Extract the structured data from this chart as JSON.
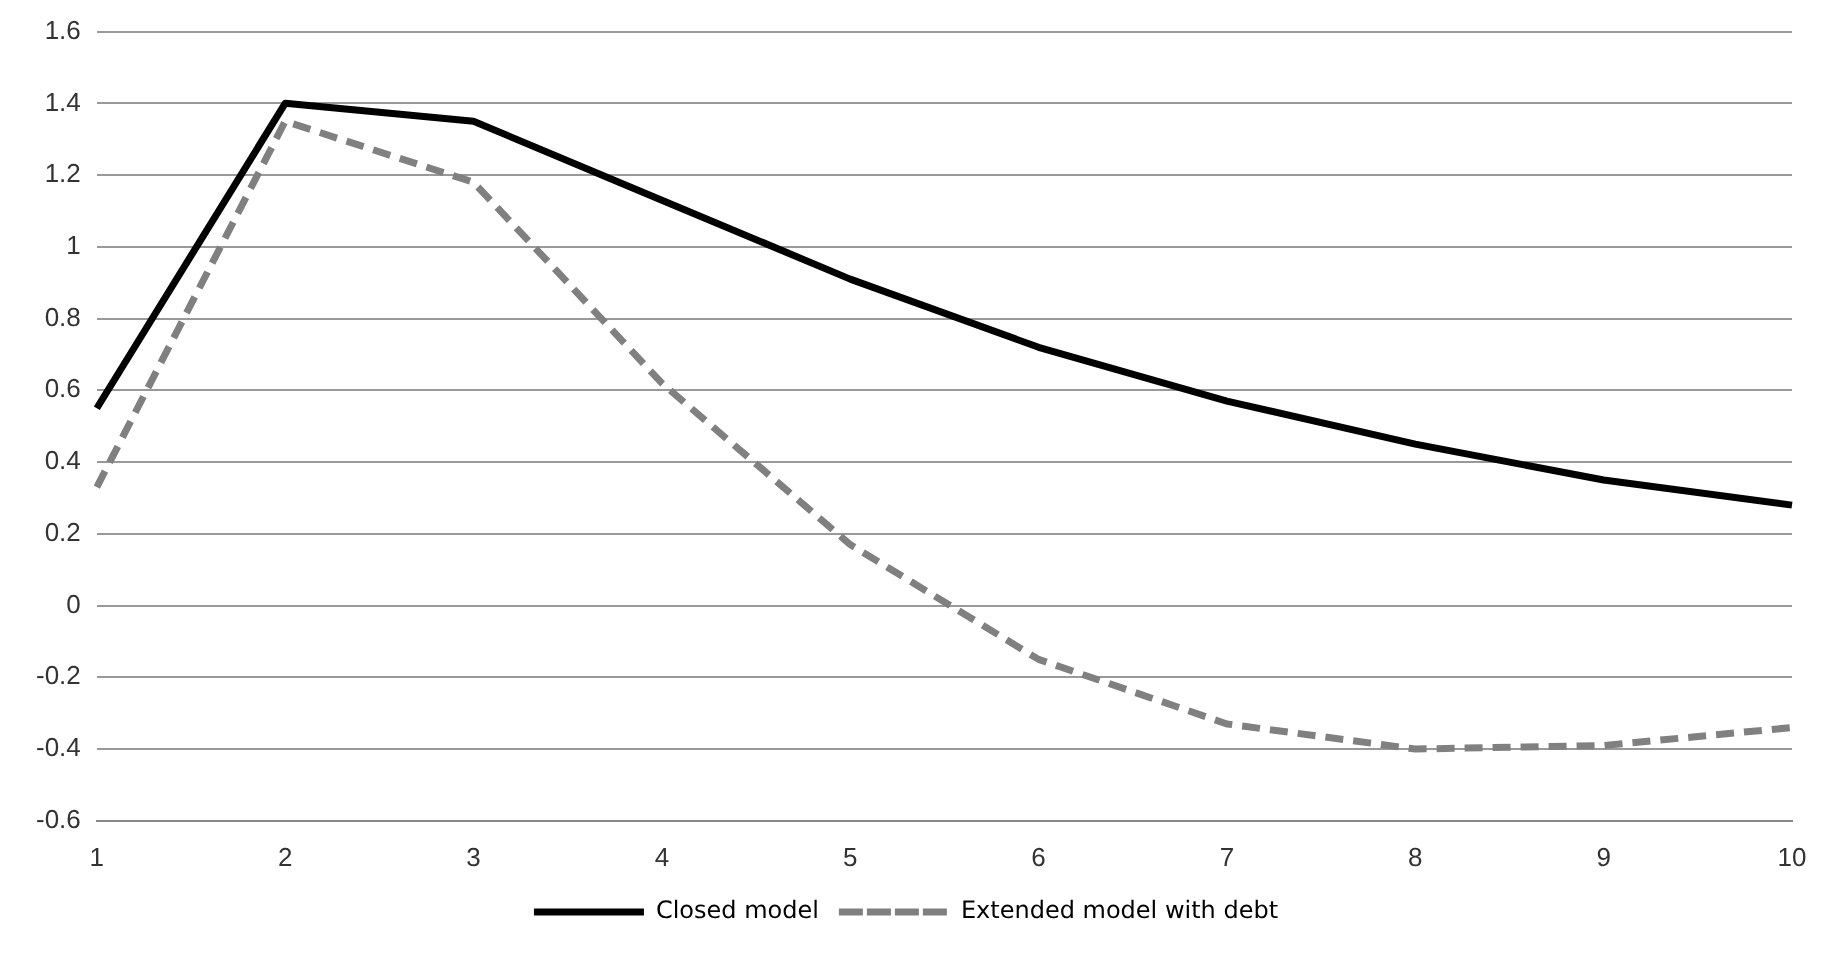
{
  "chart_data": {
    "type": "line",
    "categories": [
      "1",
      "2",
      "3",
      "4",
      "5",
      "6",
      "7",
      "8",
      "9",
      "10"
    ],
    "series": [
      {
        "name": "Closed model",
        "color": "#000000",
        "values": [
          0.55,
          1.4,
          1.35,
          1.13,
          0.91,
          0.72,
          0.57,
          0.45,
          0.35,
          0.28
        ],
        "line_style": "solid"
      },
      {
        "name": "Extended model with debt",
        "color": "#808080",
        "values": [
          0.33,
          1.35,
          1.18,
          0.62,
          0.17,
          -0.15,
          -0.33,
          -0.4,
          -0.39,
          -0.34
        ],
        "line_style": "dashed"
      }
    ],
    "ylim": [
      -0.6,
      1.6
    ],
    "yticks": [
      -0.6,
      -0.4,
      -0.2,
      0,
      0.2,
      0.4,
      0.6,
      0.8,
      1,
      1.2,
      1.4,
      1.6
    ],
    "grid": "y",
    "legend": "bottom",
    "marker": "none"
  }
}
